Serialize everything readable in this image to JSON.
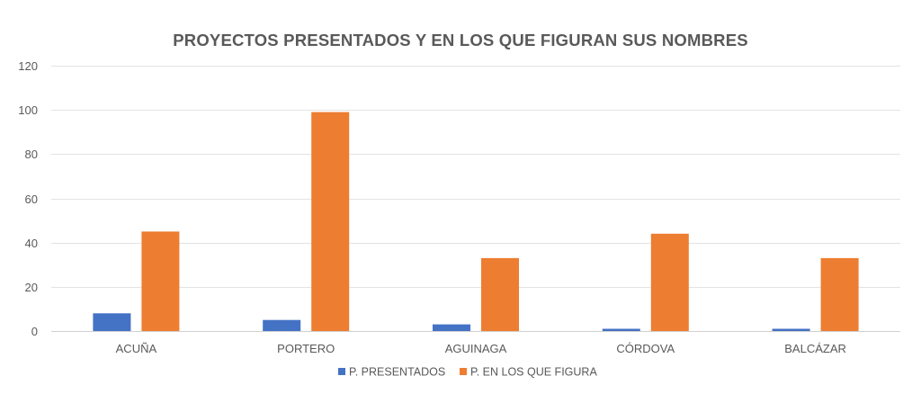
{
  "chart_data": {
    "type": "bar",
    "title": "PROYECTOS PRESENTADOS Y EN LOS QUE FIGURAN SUS NOMBRES",
    "xlabel": "",
    "ylabel": "",
    "categories": [
      "ACUÑA",
      "PORTERO",
      "AGUINAGA",
      "CÓRDOVA",
      "BALCÁZAR"
    ],
    "series": [
      {
        "name": "P. PRESENTADOS",
        "color": "#4472C4",
        "values": [
          8,
          5,
          3,
          1,
          1
        ]
      },
      {
        "name": "P. EN LOS QUE FIGURA",
        "color": "#ED7D31",
        "values": [
          45,
          99,
          33,
          44,
          33
        ]
      }
    ],
    "ylim": [
      0,
      120
    ],
    "yticks": [
      0,
      20,
      40,
      60,
      80,
      100,
      120
    ],
    "grid": true,
    "legend_position": "bottom"
  }
}
